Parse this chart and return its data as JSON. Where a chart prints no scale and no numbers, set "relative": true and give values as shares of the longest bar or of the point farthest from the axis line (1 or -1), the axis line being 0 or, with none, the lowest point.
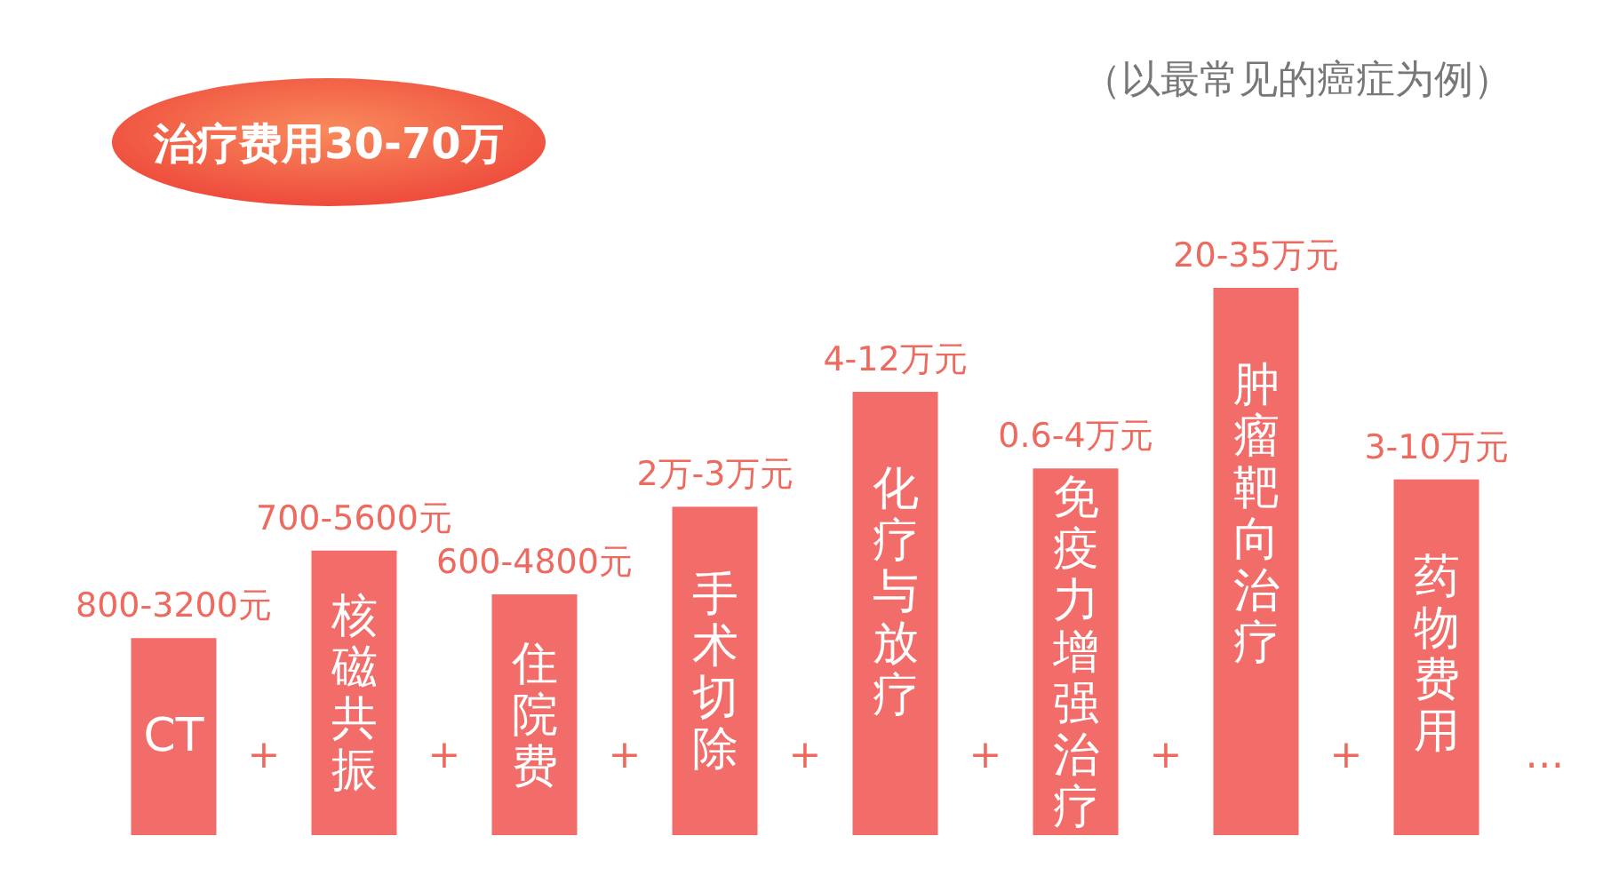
{
  "chart_data": {
    "type": "bar",
    "title": "治疗费用30-70万",
    "subtitle": "（以最常见的癌症为例）",
    "categories": [
      "CT",
      "核磁共振",
      "住院费",
      "手术切除",
      "化疗与放疗",
      "免疫力增强治疗",
      "肿瘤靶向治疗",
      "药物费用"
    ],
    "values": [
      0.36,
      0.52,
      0.44,
      0.6,
      0.81,
      0.67,
      1,
      0.65
    ],
    "relative": true,
    "color": "#f26d6a",
    "annotations": [
      "800-3200元",
      "700-5600元",
      "600-4800元",
      "2万-3万元",
      "4-12万元",
      "0.6-4万元",
      "20-35万元",
      "3-10万元",
      "+",
      "+",
      "+",
      "+",
      "+",
      "+",
      "+",
      "…"
    ]
  }
}
